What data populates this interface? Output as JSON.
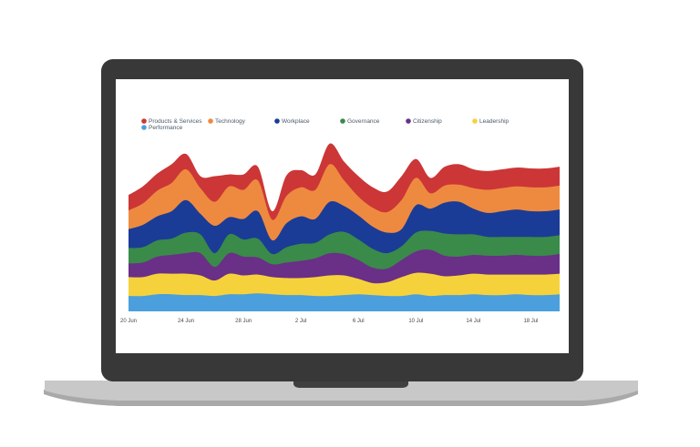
{
  "device": {
    "frame_color": "#383838",
    "base_color": "#c8c8c8",
    "base_shadow_color": "#a9a9a9",
    "screen_color": "#ffffff"
  },
  "chart_data": {
    "type": "area",
    "stacked": true,
    "style": "streamgraph",
    "title": "",
    "xlabel": "",
    "ylabel": "",
    "x_ticks": [
      "20 Jun",
      "24 Jun",
      "28 Jun",
      "2 Jul",
      "6 Jul",
      "10 Jul",
      "14 Jul",
      "18 Jul"
    ],
    "x_range": [
      "20 Jun",
      "20 Jul"
    ],
    "grid": false,
    "legend_position": "top-left",
    "x": [
      "20 Jun",
      "21 Jun",
      "22 Jun",
      "23 Jun",
      "24 Jun",
      "25 Jun",
      "26 Jun",
      "27 Jun",
      "28 Jun",
      "29 Jun",
      "30 Jun",
      "1 Jul",
      "2 Jul",
      "3 Jul",
      "4 Jul",
      "5 Jul",
      "6 Jul",
      "7 Jul",
      "8 Jul",
      "9 Jul",
      "10 Jul",
      "11 Jul",
      "12 Jul",
      "13 Jul",
      "14 Jul",
      "15 Jul",
      "16 Jul",
      "17 Jul",
      "18 Jul",
      "19 Jul",
      "20 Jul"
    ],
    "series": [
      {
        "name": "Performance",
        "color": "#4a9fdc",
        "values": [
          18,
          18,
          20,
          20,
          19,
          19,
          18,
          20,
          20,
          21,
          20,
          19,
          19,
          18,
          18,
          19,
          20,
          19,
          18,
          18,
          20,
          18,
          19,
          19,
          20,
          19,
          19,
          20,
          19,
          19,
          20
        ]
      },
      {
        "name": "Leadership",
        "color": "#f5d23c",
        "values": [
          22,
          22,
          24,
          24,
          25,
          23,
          18,
          24,
          22,
          22,
          20,
          20,
          20,
          22,
          24,
          23,
          18,
          14,
          16,
          22,
          25,
          26,
          22,
          23,
          24,
          24,
          24,
          23,
          24,
          24,
          24
        ]
      },
      {
        "name": "Citizenship",
        "color": "#6a2f86",
        "values": [
          16,
          17,
          20,
          22,
          24,
          26,
          16,
          24,
          22,
          20,
          15,
          18,
          20,
          22,
          26,
          25,
          22,
          18,
          16,
          20,
          25,
          28,
          24,
          22,
          22,
          22,
          22,
          23,
          22,
          22,
          23
        ]
      },
      {
        "name": "Governance",
        "color": "#3a8a4a",
        "values": [
          18,
          18,
          19,
          19,
          24,
          22,
          16,
          22,
          20,
          22,
          12,
          18,
          20,
          18,
          22,
          26,
          24,
          22,
          18,
          16,
          22,
          22,
          26,
          26,
          24,
          22,
          22,
          21,
          22,
          22,
          22
        ]
      },
      {
        "name": "Workplace",
        "color": "#1a3c96",
        "values": [
          22,
          26,
          28,
          32,
          38,
          24,
          32,
          20,
          24,
          32,
          16,
          28,
          32,
          28,
          38,
          30,
          28,
          26,
          24,
          20,
          32,
          26,
          36,
          38,
          30,
          28,
          30,
          32,
          30,
          30,
          30
        ]
      },
      {
        "name": "Technology",
        "color": "#ee8a40",
        "values": [
          22,
          25,
          30,
          33,
          36,
          30,
          28,
          36,
          34,
          36,
          24,
          32,
          34,
          34,
          44,
          30,
          22,
          22,
          24,
          34,
          32,
          18,
          20,
          20,
          24,
          27,
          27,
          27,
          28,
          28,
          28
        ]
      },
      {
        "name": "Products & Services",
        "color": "#cc3636",
        "values": [
          18,
          20,
          20,
          22,
          18,
          14,
          30,
          14,
          18,
          16,
          10,
          24,
          20,
          18,
          24,
          22,
          24,
          24,
          24,
          28,
          22,
          18,
          22,
          24,
          22,
          22,
          22,
          22,
          22,
          22,
          22
        ]
      }
    ],
    "legend_order": [
      "Products & Services",
      "Technology",
      "Workplace",
      "Governance",
      "Citizenship",
      "Leadership",
      "Performance"
    ]
  }
}
